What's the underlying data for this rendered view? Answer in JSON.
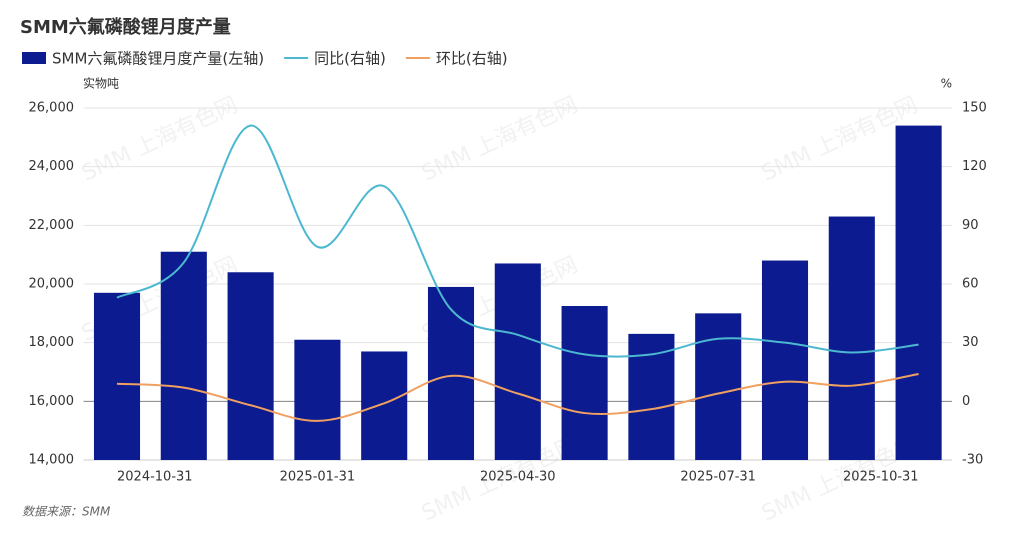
{
  "chart_data": {
    "type": "bar_line",
    "title": "SMM六氟磷酸锂月度产量",
    "categories": [
      "2024-10-31",
      null,
      null,
      "2025-01-31",
      null,
      null,
      "2025-04-30",
      null,
      null,
      "2025-07-31",
      null,
      null,
      "2025-10-31"
    ],
    "series": [
      {
        "name": "SMM六氟磷酸锂月度产量(左轴)",
        "type": "bar",
        "color": "#0c1b8f",
        "values": [
          19700,
          21100,
          20400,
          18100,
          17700,
          19900,
          20700,
          19250,
          18300,
          19000,
          20800,
          22300,
          25400
        ]
      },
      {
        "name": "同比(右轴)",
        "type": "line",
        "axis": "y2",
        "color": "#4bb8d0",
        "values": [
          53,
          71,
          141,
          79,
          110,
          47,
          34,
          24,
          24,
          32,
          30,
          25,
          29
        ]
      },
      {
        "name": "环比(右轴)",
        "type": "line",
        "axis": "y2",
        "color": "#f0a060",
        "values": [
          9,
          7,
          -2,
          -10,
          -1,
          13,
          4,
          -6,
          -4,
          4,
          10,
          8,
          14
        ]
      }
    ],
    "ylabel": "实物吨",
    "y2label": "%",
    "ylim": [
      14000,
      26000
    ],
    "yticks": [
      {
        "value": 14000,
        "label": "14,000"
      },
      {
        "value": 16000,
        "label": "16,000"
      },
      {
        "value": 18000,
        "label": "18,000"
      },
      {
        "value": 20000,
        "label": "20,000"
      },
      {
        "value": 22000,
        "label": "22,000"
      },
      {
        "value": 24000,
        "label": "24,000"
      },
      {
        "value": 26000,
        "label": "26,000"
      }
    ],
    "y2lim": [
      -30,
      150
    ],
    "y2ticks": [
      -30,
      0,
      30,
      60,
      90,
      120,
      150
    ],
    "grid": true,
    "legend": "top",
    "watermark": "SMM 上海有色网",
    "source": "数据来源：SMM"
  }
}
